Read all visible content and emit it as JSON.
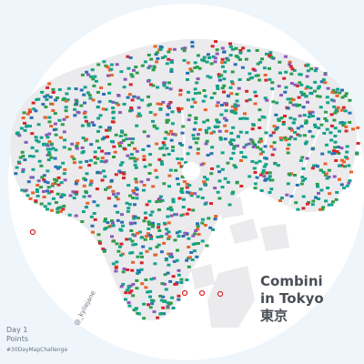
{
  "title": {
    "line1": "Combini",
    "line2": "in Tokyo",
    "line3": "東京"
  },
  "footer": {
    "day": "Day 1",
    "theme": "Points",
    "hashtag": "#30DayMapChallenge"
  },
  "author": "@_kyliejane",
  "colors": {
    "background": "#eef5fb",
    "disc": "#ffffff",
    "land": "#ebebed",
    "water": "#ffffff",
    "store_teal": "#14a38b",
    "store_green": "#2e9d4a",
    "store_blue": "#2c6fb5",
    "store_orange": "#e8632b",
    "store_red": "#d7262b",
    "store_purple": "#8a5ab8",
    "title_text": "#4a4f57"
  },
  "icons": {
    "store_marker": "convenience-store-icon"
  }
}
